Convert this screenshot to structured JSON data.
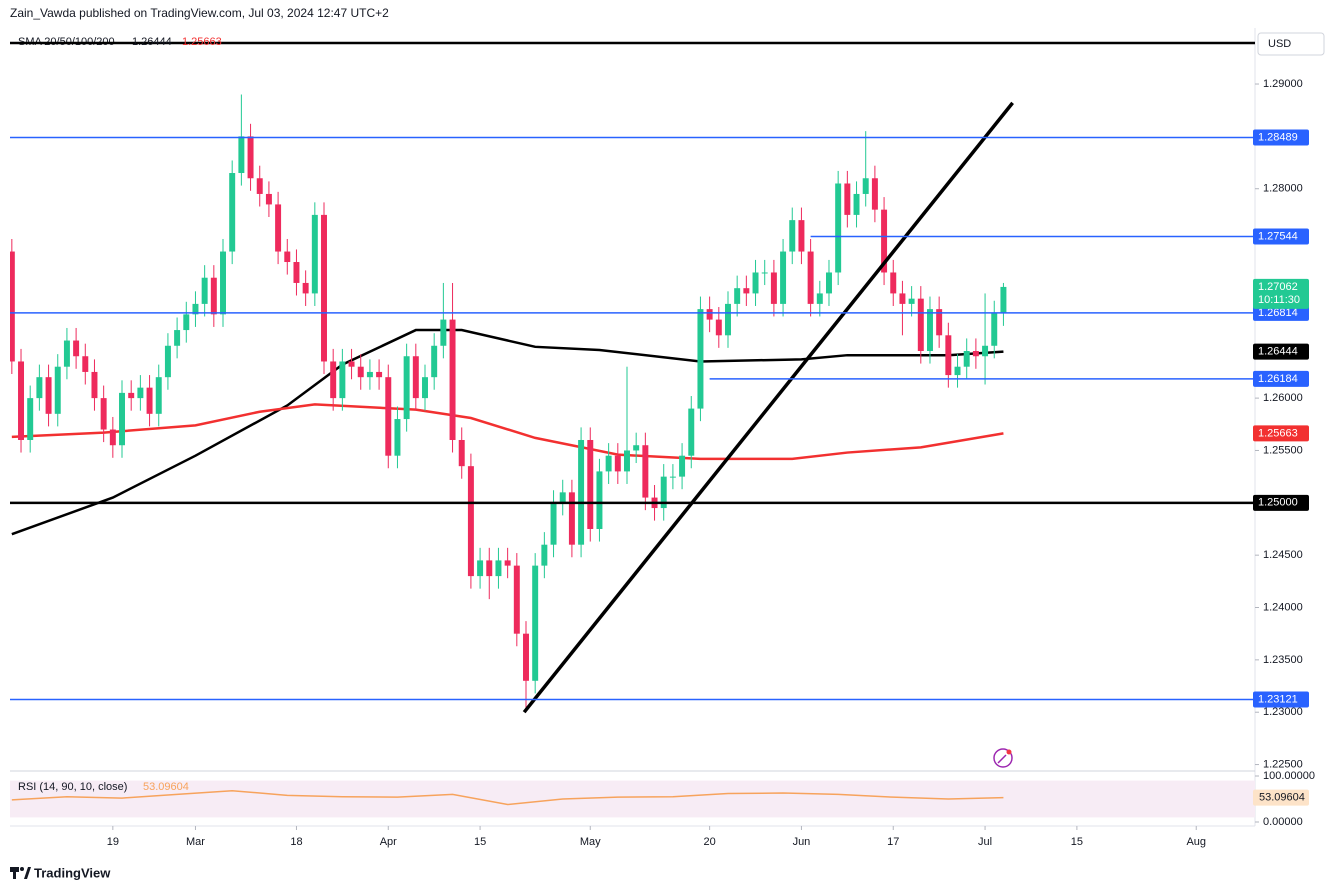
{
  "chart_data": {
    "type": "candlestick",
    "header": "Zain_Vawda published on TradingView.com, Jul 03, 2024 12:47 UTC+2",
    "title": "SMA 20/50/100/200",
    "currency": "USD",
    "countdown": "10:11:30",
    "brand": "TradingView",
    "up_color": "#22c993",
    "down_color": "#ee2a5c",
    "xlim": [
      -0.2,
      135.4
    ],
    "xticks": [
      {
        "value": 11,
        "label": "19"
      },
      {
        "value": 20,
        "label": "Mar"
      },
      {
        "value": 31,
        "label": "18"
      },
      {
        "value": 41,
        "label": "Apr"
      },
      {
        "value": 51,
        "label": "15"
      },
      {
        "value": 63,
        "label": "May"
      },
      {
        "value": 76,
        "label": "20"
      },
      {
        "value": 86,
        "label": "Jun"
      },
      {
        "value": 96,
        "label": "17"
      },
      {
        "value": 106,
        "label": "Jul"
      },
      {
        "value": 116,
        "label": "15"
      },
      {
        "value": 129,
        "label": "Aug"
      }
    ],
    "ylim": [
      1.22448,
      1.29516
    ],
    "yticks": [
      {
        "value": 1.29,
        "label": "1.29000"
      },
      {
        "value": 1.28,
        "label": "1.28000"
      },
      {
        "value": 1.26,
        "label": "1.26000"
      },
      {
        "value": 1.255,
        "label": "1.25500"
      },
      {
        "value": 1.245,
        "label": "1.24500"
      },
      {
        "value": 1.24,
        "label": "1.24000"
      },
      {
        "value": 1.235,
        "label": "1.23500"
      },
      {
        "value": 1.23,
        "label": "1.23000"
      },
      {
        "value": 1.225,
        "label": "1.22500"
      }
    ],
    "x": [
      0,
      1,
      2,
      3,
      4,
      5,
      6,
      7,
      8,
      9,
      10,
      11,
      12,
      13,
      14,
      15,
      16,
      17,
      18,
      19,
      20,
      21,
      22,
      23,
      24,
      25,
      26,
      27,
      28,
      29,
      30,
      31,
      32,
      33,
      34,
      35,
      36,
      37,
      38,
      39,
      40,
      41,
      42,
      43,
      44,
      45,
      46,
      47,
      48,
      49,
      50,
      51,
      52,
      53,
      54,
      55,
      56,
      57,
      58,
      59,
      60,
      61,
      62,
      63,
      64,
      65,
      66,
      67,
      68,
      69,
      70,
      71,
      72,
      73,
      74,
      75,
      76,
      77,
      78,
      79,
      80,
      81,
      82,
      83,
      84,
      85,
      86,
      87,
      88,
      89,
      90,
      91,
      92,
      93,
      94,
      95,
      96,
      97,
      98,
      99,
      100,
      101,
      102,
      103,
      104,
      105,
      106,
      107,
      108
    ],
    "ohlc": [
      [
        1.274,
        1.2752,
        1.2623,
        1.2635
      ],
      [
        1.2635,
        1.2647,
        1.2548,
        1.256
      ],
      [
        1.256,
        1.2612,
        1.2548,
        1.26
      ],
      [
        1.26,
        1.2632,
        1.2588,
        1.262
      ],
      [
        1.262,
        1.2632,
        1.2573,
        1.2585
      ],
      [
        1.2585,
        1.2642,
        1.2573,
        1.263
      ],
      [
        1.263,
        1.2667,
        1.2618,
        1.2655
      ],
      [
        1.2655,
        1.2667,
        1.2628,
        1.264
      ],
      [
        1.264,
        1.2652,
        1.2613,
        1.2625
      ],
      [
        1.2625,
        1.2637,
        1.2588,
        1.26
      ],
      [
        1.26,
        1.2612,
        1.2558,
        1.257
      ],
      [
        1.257,
        1.2582,
        1.2543,
        1.2555
      ],
      [
        1.2555,
        1.2617,
        1.2543,
        1.2605
      ],
      [
        1.2605,
        1.2617,
        1.2588,
        1.26
      ],
      [
        1.26,
        1.2622,
        1.2588,
        1.261
      ],
      [
        1.261,
        1.2622,
        1.2573,
        1.2585
      ],
      [
        1.2585,
        1.2632,
        1.2573,
        1.262
      ],
      [
        1.262,
        1.2662,
        1.2608,
        1.265
      ],
      [
        1.265,
        1.2677,
        1.2638,
        1.2665
      ],
      [
        1.2665,
        1.2692,
        1.2653,
        1.268
      ],
      [
        1.268,
        1.2702,
        1.2668,
        1.269
      ],
      [
        1.269,
        1.2727,
        1.2678,
        1.2715
      ],
      [
        1.2715,
        1.2727,
        1.2668,
        1.268
      ],
      [
        1.268,
        1.2752,
        1.2668,
        1.274
      ],
      [
        1.274,
        1.2827,
        1.2728,
        1.2815
      ],
      [
        1.2815,
        1.289,
        1.2803,
        1.285
      ],
      [
        1.285,
        1.2862,
        1.2798,
        1.281
      ],
      [
        1.281,
        1.2822,
        1.2783,
        1.2795
      ],
      [
        1.2795,
        1.2807,
        1.2773,
        1.2785
      ],
      [
        1.2785,
        1.2797,
        1.2728,
        1.274
      ],
      [
        1.274,
        1.2752,
        1.2718,
        1.273
      ],
      [
        1.273,
        1.2742,
        1.2698,
        1.271
      ],
      [
        1.271,
        1.2722,
        1.2688,
        1.27
      ],
      [
        1.27,
        1.2787,
        1.2688,
        1.2775
      ],
      [
        1.2775,
        1.2787,
        1.2623,
        1.2635
      ],
      [
        1.2635,
        1.2647,
        1.2588,
        1.26
      ],
      [
        1.26,
        1.2647,
        1.2588,
        1.2635
      ],
      [
        1.2635,
        1.2647,
        1.2618,
        1.263
      ],
      [
        1.263,
        1.2642,
        1.2608,
        1.262
      ],
      [
        1.262,
        1.2637,
        1.2608,
        1.2625
      ],
      [
        1.2625,
        1.2637,
        1.2608,
        1.262
      ],
      [
        1.262,
        1.2632,
        1.2533,
        1.2545
      ],
      [
        1.2545,
        1.2592,
        1.2533,
        1.258
      ],
      [
        1.258,
        1.2652,
        1.2568,
        1.264
      ],
      [
        1.264,
        1.2652,
        1.2588,
        1.26
      ],
      [
        1.26,
        1.2632,
        1.2588,
        1.262
      ],
      [
        1.262,
        1.2662,
        1.2608,
        1.265
      ],
      [
        1.265,
        1.271,
        1.2638,
        1.2675
      ],
      [
        1.2675,
        1.271,
        1.2548,
        1.256
      ],
      [
        1.256,
        1.2572,
        1.2523,
        1.2535
      ],
      [
        1.2535,
        1.2547,
        1.2418,
        1.243
      ],
      [
        1.243,
        1.2457,
        1.2418,
        1.2445
      ],
      [
        1.2445,
        1.2457,
        1.2408,
        1.243
      ],
      [
        1.243,
        1.2457,
        1.2418,
        1.2445
      ],
      [
        1.2445,
        1.2457,
        1.2428,
        1.244
      ],
      [
        1.244,
        1.2452,
        1.2363,
        1.2375
      ],
      [
        1.2375,
        1.2387,
        1.23,
        1.233
      ],
      [
        1.233,
        1.2452,
        1.2318,
        1.244
      ],
      [
        1.244,
        1.2472,
        1.2428,
        1.246
      ],
      [
        1.246,
        1.2512,
        1.2448,
        1.25
      ],
      [
        1.25,
        1.2522,
        1.2488,
        1.251
      ],
      [
        1.251,
        1.2522,
        1.2448,
        1.246
      ],
      [
        1.246,
        1.2572,
        1.2448,
        1.256
      ],
      [
        1.256,
        1.2572,
        1.2463,
        1.2475
      ],
      [
        1.2475,
        1.2542,
        1.2463,
        1.253
      ],
      [
        1.253,
        1.2557,
        1.2518,
        1.2545
      ],
      [
        1.2545,
        1.2557,
        1.2518,
        1.253
      ],
      [
        1.253,
        1.263,
        1.2518,
        1.255
      ],
      [
        1.255,
        1.2567,
        1.2538,
        1.2555
      ],
      [
        1.2555,
        1.2567,
        1.2493,
        1.2505
      ],
      [
        1.2505,
        1.2517,
        1.2483,
        1.2495
      ],
      [
        1.2495,
        1.2537,
        1.2483,
        1.2525
      ],
      [
        1.2525,
        1.2537,
        1.2513,
        1.2525
      ],
      [
        1.2525,
        1.2557,
        1.2513,
        1.2545
      ],
      [
        1.2545,
        1.2602,
        1.2533,
        1.259
      ],
      [
        1.259,
        1.2697,
        1.2578,
        1.2685
      ],
      [
        1.2685,
        1.2697,
        1.2663,
        1.2675
      ],
      [
        1.2675,
        1.2687,
        1.2648,
        1.266
      ],
      [
        1.266,
        1.2702,
        1.2648,
        1.269
      ],
      [
        1.269,
        1.2717,
        1.2678,
        1.2705
      ],
      [
        1.2705,
        1.2717,
        1.2688,
        1.27
      ],
      [
        1.27,
        1.2732,
        1.2688,
        1.272
      ],
      [
        1.272,
        1.2732,
        1.2708,
        1.272
      ],
      [
        1.272,
        1.2732,
        1.2678,
        1.269
      ],
      [
        1.269,
        1.2752,
        1.2678,
        1.274
      ],
      [
        1.274,
        1.2782,
        1.2728,
        1.277
      ],
      [
        1.277,
        1.2782,
        1.2728,
        1.274
      ],
      [
        1.274,
        1.2752,
        1.2678,
        1.269
      ],
      [
        1.269,
        1.2712,
        1.2678,
        1.27
      ],
      [
        1.27,
        1.2732,
        1.2688,
        1.272
      ],
      [
        1.272,
        1.2817,
        1.2708,
        1.2805
      ],
      [
        1.2805,
        1.2817,
        1.2763,
        1.2775
      ],
      [
        1.2775,
        1.2807,
        1.2763,
        1.2795
      ],
      [
        1.2795,
        1.2855,
        1.2783,
        1.281
      ],
      [
        1.281,
        1.2822,
        1.2768,
        1.278
      ],
      [
        1.278,
        1.2792,
        1.2708,
        1.272
      ],
      [
        1.272,
        1.2732,
        1.2688,
        1.27
      ],
      [
        1.27,
        1.2712,
        1.266,
        1.269
      ],
      [
        1.269,
        1.2707,
        1.2678,
        1.2695
      ],
      [
        1.2695,
        1.2707,
        1.2633,
        1.2645
      ],
      [
        1.2645,
        1.2697,
        1.2633,
        1.2685
      ],
      [
        1.2685,
        1.2697,
        1.2648,
        1.266
      ],
      [
        1.266,
        1.2672,
        1.261,
        1.2622
      ],
      [
        1.2622,
        1.2642,
        1.261,
        1.263
      ],
      [
        1.263,
        1.2657,
        1.2618,
        1.2645
      ],
      [
        1.2645,
        1.2657,
        1.2628,
        1.264
      ],
      [
        1.264,
        1.27,
        1.2613,
        1.265
      ],
      [
        1.265,
        1.2693,
        1.2638,
        1.2681
      ],
      [
        1.2681,
        1.271,
        1.2669,
        1.27062
      ]
    ],
    "series": [
      {
        "name": "SMA 100",
        "color": "#000000",
        "x": [
          0,
          11,
          20,
          30,
          36,
          44,
          49,
          57,
          64,
          75,
          86,
          91,
          102,
          108
        ],
        "values": [
          1.247,
          1.2505,
          1.2545,
          1.2593,
          1.2632,
          1.2665,
          1.2665,
          1.2649,
          1.2646,
          1.2635,
          1.2637,
          1.2641,
          1.2641,
          1.26444
        ]
      },
      {
        "name": "SMA 200",
        "color": "#f23030",
        "x": [
          0,
          10,
          20,
          27,
          33,
          44,
          50,
          57,
          66,
          75,
          85,
          91,
          99,
          108
        ],
        "values": [
          1.2563,
          1.2567,
          1.2574,
          1.2587,
          1.2594,
          1.2589,
          1.2581,
          1.2562,
          1.2546,
          1.2542,
          1.2542,
          1.2548,
          1.2553,
          1.25663
        ]
      }
    ],
    "levels": [
      {
        "value": 1.29392,
        "color": "#000000",
        "tag": false
      },
      {
        "value": 1.28489,
        "color": "#2962ff",
        "tag": true
      },
      {
        "value": 1.27544,
        "color": "#2962ff",
        "tag": true,
        "x_start": 87
      },
      {
        "value": 1.26814,
        "color": "#2962ff",
        "tag": true
      },
      {
        "value": 1.26184,
        "color": "#2962ff",
        "tag": true,
        "x_start": 76
      },
      {
        "value": 1.25,
        "label": "1.25000",
        "color": "#000000",
        "tag": true
      },
      {
        "value": 1.23121,
        "color": "#2962ff",
        "tag": true
      }
    ],
    "trendline": {
      "color": "#000000",
      "x": [
        55.8,
        109
      ],
      "values": [
        1.23,
        1.2882
      ]
    },
    "rsi": {
      "title": "RSI (14, 90, 10, close)",
      "color": "#f7a35c",
      "ylim": [
        0,
        100
      ],
      "band": [
        10,
        90
      ],
      "yticks": [
        {
          "value": 100,
          "label": "100.00000"
        },
        {
          "value": 0,
          "label": "0.00000"
        }
      ],
      "x": [
        0,
        6,
        12,
        18,
        24,
        30,
        36,
        42,
        48,
        54,
        60,
        66,
        72,
        78,
        84,
        90,
        96,
        102,
        108
      ],
      "values": [
        48,
        55,
        52,
        60,
        68,
        58,
        55,
        54,
        60,
        38,
        50,
        54,
        55,
        62,
        63,
        60,
        54,
        50,
        53.09604
      ]
    }
  }
}
